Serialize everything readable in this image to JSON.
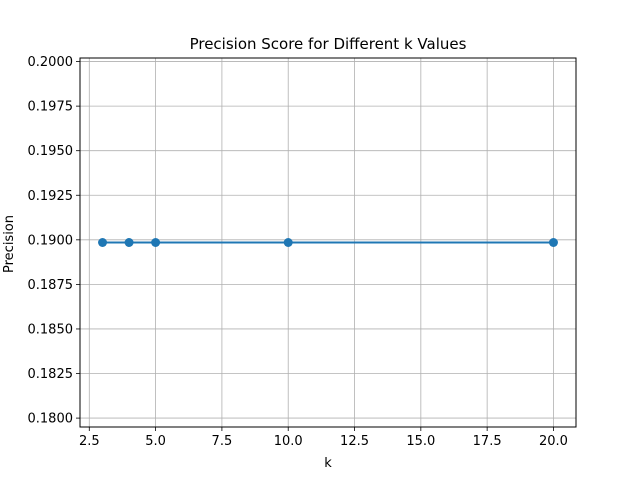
{
  "chart_data": {
    "type": "line",
    "title": "Precision Score for Different k Values",
    "xlabel": "k",
    "ylabel": "Precision",
    "x": [
      3,
      4,
      5,
      10,
      20
    ],
    "series": [
      {
        "values": [
          0.18985,
          0.18985,
          0.18985,
          0.18985,
          0.18985
        ],
        "color": "#1f77b4",
        "marker": "circle"
      }
    ],
    "xlim": [
      2.15,
      20.85
    ],
    "ylim": [
      0.1795,
      0.2002
    ],
    "x_ticks": [
      2.5,
      5.0,
      7.5,
      10.0,
      12.5,
      15.0,
      17.5,
      20.0
    ],
    "x_tick_labels": [
      "2.5",
      "5.0",
      "7.5",
      "10.0",
      "12.5",
      "15.0",
      "17.5",
      "20.0"
    ],
    "y_ticks": [
      0.18,
      0.1825,
      0.185,
      0.1875,
      0.19,
      0.1925,
      0.195,
      0.1975,
      0.2
    ],
    "y_tick_labels": [
      "0.1800",
      "0.1825",
      "0.1850",
      "0.1875",
      "0.1900",
      "0.1925",
      "0.1950",
      "0.1975",
      "0.2000"
    ],
    "grid": true,
    "grid_color": "#b0b0b0",
    "axis_color": "#000000"
  }
}
